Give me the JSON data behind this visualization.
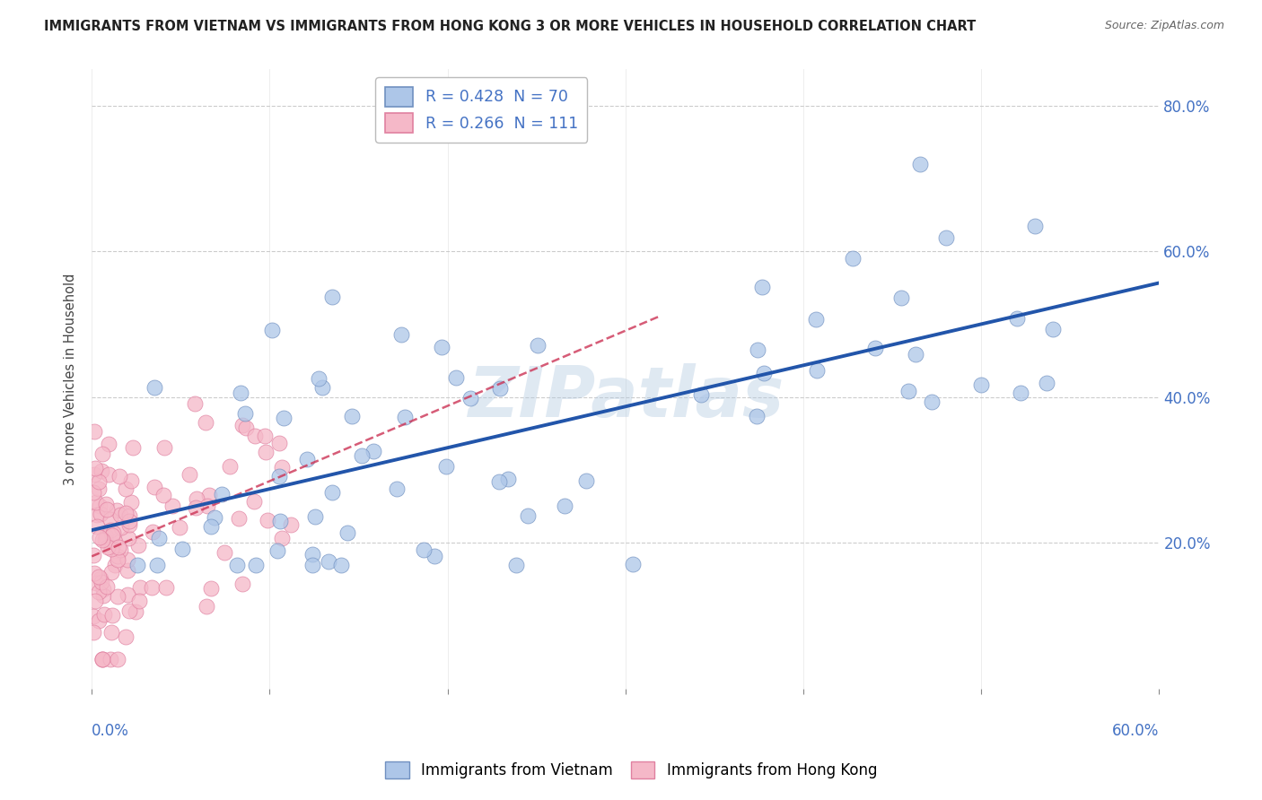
{
  "title": "IMMIGRANTS FROM VIETNAM VS IMMIGRANTS FROM HONG KONG 3 OR MORE VEHICLES IN HOUSEHOLD CORRELATION CHART",
  "source": "Source: ZipAtlas.com",
  "ylabel": "3 or more Vehicles in Household",
  "legend1_label": "R = 0.428  N = 70",
  "legend2_label": "R = 0.266  N = 111",
  "series1_name": "Immigrants from Vietnam",
  "series2_name": "Immigrants from Hong Kong",
  "series1_color": "#adc6e8",
  "series2_color": "#f5b8c8",
  "series1_edge": "#7090c0",
  "series2_edge": "#e080a0",
  "trendline1_color": "#2255aa",
  "trendline2_color": "#cc3355",
  "watermark": "ZIPatlas",
  "watermark_color": "#b0c8e0",
  "xlim": [
    0.0,
    0.6
  ],
  "ylim": [
    0.0,
    0.85
  ],
  "ytick_vals": [
    0.2,
    0.4,
    0.6,
    0.8
  ],
  "ytick_labels": [
    "20.0%",
    "40.0%",
    "60.0%",
    "80.0%"
  ],
  "background_color": "#ffffff",
  "grid_color": "#cccccc",
  "R1": 0.428,
  "N1": 70,
  "R2": 0.266,
  "N2": 111,
  "title_color": "#222222",
  "source_color": "#666666",
  "axis_label_color": "#4472c4",
  "ylabel_color": "#444444"
}
